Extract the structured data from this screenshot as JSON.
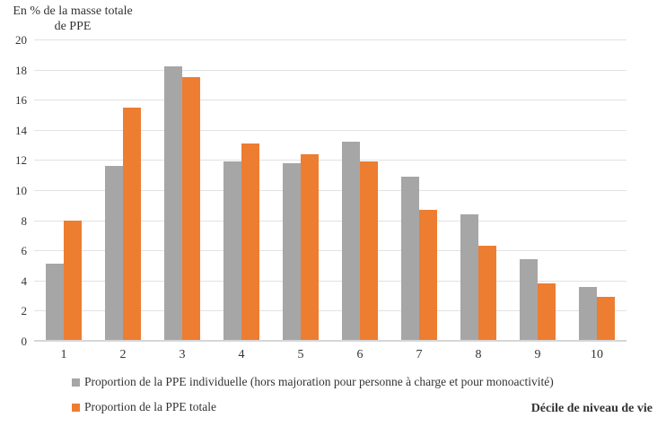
{
  "axis_title": {
    "line1": "En % de la masse totale",
    "line2": "de PPE"
  },
  "x_axis_label": "Décile de niveau de vie",
  "legend": {
    "items": [
      {
        "label": "Proportion de la PPE individuelle (hors majoration pour personne à charge et pour monoactivité)",
        "color": "#A6A6A6"
      },
      {
        "label": "Proportion de la PPE totale",
        "color": "#ED7D31"
      }
    ]
  },
  "colors": {
    "gray_series": "#A6A6A6",
    "orange_series": "#ED7D31",
    "gridline": "#E2E2E2",
    "axis_line": "#D6D6D6",
    "text": "#333333"
  },
  "chart_data": {
    "type": "bar",
    "title": "En % de la masse totale de PPE",
    "ylabel": "En % de la masse totale de PPE",
    "xlabel": "Décile de niveau de vie",
    "categories": [
      "1",
      "2",
      "3",
      "4",
      "5",
      "6",
      "7",
      "8",
      "9",
      "10"
    ],
    "series": [
      {
        "name": "Proportion de la PPE individuelle (hors majoration pour personne à charge et pour monoactivité)",
        "color": "#A6A6A6",
        "values": [
          5.1,
          11.6,
          18.2,
          11.9,
          11.8,
          13.2,
          10.9,
          8.4,
          5.4,
          3.6
        ]
      },
      {
        "name": "Proportion de la PPE totale",
        "color": "#ED7D31",
        "values": [
          8.0,
          15.5,
          17.5,
          13.1,
          12.4,
          11.9,
          8.7,
          6.3,
          3.8,
          2.9
        ]
      }
    ],
    "ylim": [
      0,
      20
    ],
    "ytick_step": 2,
    "grid": true,
    "legend_position": "bottom-left"
  }
}
